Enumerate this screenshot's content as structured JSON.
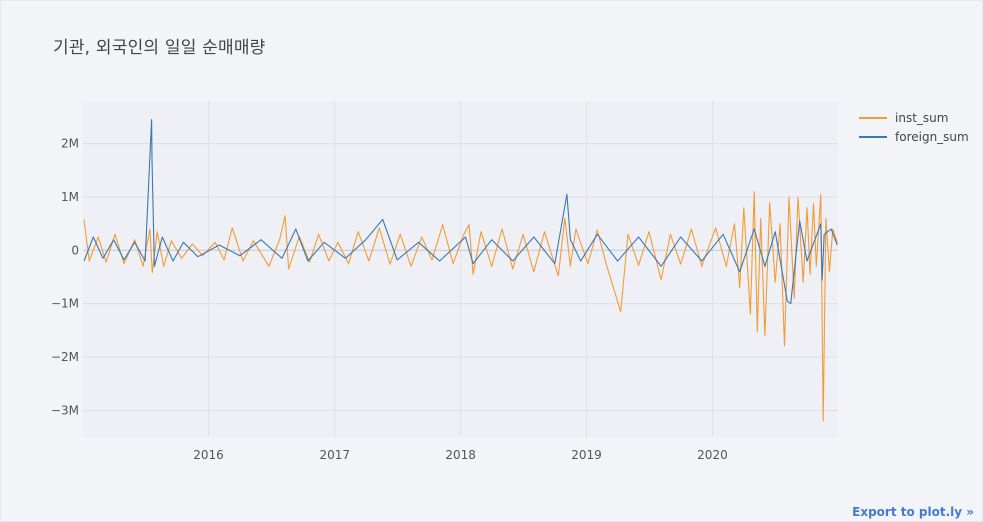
{
  "chart_data": {
    "type": "line",
    "title": "기관, 외국인의 일일 순매매량",
    "xlabel": "",
    "ylabel": "",
    "x_ticks": [
      "2016",
      "2017",
      "2018",
      "2019",
      "2020"
    ],
    "x_range": [
      "2015-01-02",
      "2020-12-30"
    ],
    "y_ticks": [
      {
        "value": 2000000,
        "label": "2M"
      },
      {
        "value": 1000000,
        "label": "1M"
      },
      {
        "value": 0,
        "label": "0"
      },
      {
        "value": -1000000,
        "label": "−1M"
      },
      {
        "value": -2000000,
        "label": "−2M"
      },
      {
        "value": -3000000,
        "label": "−3M"
      }
    ],
    "ylim": [
      -3500000,
      2800000
    ],
    "grid": true,
    "legend_position": "top-right",
    "series": [
      {
        "name": "inst_sum",
        "color": "#f39c36",
        "points": [
          [
            "2015-01-05",
            580000
          ],
          [
            "2015-01-20",
            -200000
          ],
          [
            "2015-02-15",
            250000
          ],
          [
            "2015-03-10",
            -220000
          ],
          [
            "2015-04-05",
            300000
          ],
          [
            "2015-05-01",
            -250000
          ],
          [
            "2015-06-01",
            200000
          ],
          [
            "2015-06-25",
            -300000
          ],
          [
            "2015-07-15",
            400000
          ],
          [
            "2015-07-22",
            -420000
          ],
          [
            "2015-08-05",
            350000
          ],
          [
            "2015-08-24",
            -300000
          ],
          [
            "2015-09-15",
            180000
          ],
          [
            "2015-10-15",
            -150000
          ],
          [
            "2015-11-15",
            120000
          ],
          [
            "2015-12-15",
            -100000
          ],
          [
            "2016-01-20",
            150000
          ],
          [
            "2016-02-15",
            -180000
          ],
          [
            "2016-03-10",
            420000
          ],
          [
            "2016-04-10",
            -200000
          ],
          [
            "2016-05-10",
            180000
          ],
          [
            "2016-06-24",
            -300000
          ],
          [
            "2016-07-25",
            200000
          ],
          [
            "2016-08-10",
            650000
          ],
          [
            "2016-08-20",
            -350000
          ],
          [
            "2016-09-20",
            260000
          ],
          [
            "2016-10-20",
            -220000
          ],
          [
            "2016-11-15",
            300000
          ],
          [
            "2016-12-15",
            -200000
          ],
          [
            "2017-01-10",
            150000
          ],
          [
            "2017-02-10",
            -250000
          ],
          [
            "2017-03-10",
            350000
          ],
          [
            "2017-04-10",
            -200000
          ],
          [
            "2017-05-10",
            420000
          ],
          [
            "2017-06-10",
            -260000
          ],
          [
            "2017-07-10",
            300000
          ],
          [
            "2017-08-10",
            -300000
          ],
          [
            "2017-09-10",
            250000
          ],
          [
            "2017-10-10",
            -180000
          ],
          [
            "2017-11-10",
            480000
          ],
          [
            "2017-12-10",
            -250000
          ],
          [
            "2018-01-10",
            300000
          ],
          [
            "2018-01-25",
            480000
          ],
          [
            "2018-02-06",
            -450000
          ],
          [
            "2018-03-01",
            350000
          ],
          [
            "2018-04-01",
            -300000
          ],
          [
            "2018-05-01",
            400000
          ],
          [
            "2018-06-01",
            -350000
          ],
          [
            "2018-07-01",
            300000
          ],
          [
            "2018-08-01",
            -400000
          ],
          [
            "2018-09-01",
            350000
          ],
          [
            "2018-10-11",
            -480000
          ],
          [
            "2018-10-30",
            600000
          ],
          [
            "2018-11-15",
            -300000
          ],
          [
            "2018-12-01",
            400000
          ],
          [
            "2019-01-05",
            -250000
          ],
          [
            "2019-02-01",
            380000
          ],
          [
            "2019-03-01",
            -300000
          ],
          [
            "2019-04-10",
            -1150000
          ],
          [
            "2019-05-01",
            300000
          ],
          [
            "2019-06-01",
            -280000
          ],
          [
            "2019-07-01",
            350000
          ],
          [
            "2019-08-05",
            -550000
          ],
          [
            "2019-09-01",
            300000
          ],
          [
            "2019-10-01",
            -260000
          ],
          [
            "2019-11-01",
            400000
          ],
          [
            "2019-12-01",
            -300000
          ],
          [
            "2020-01-10",
            420000
          ],
          [
            "2020-02-10",
            -300000
          ],
          [
            "2020-03-05",
            500000
          ],
          [
            "2020-03-20",
            -700000
          ],
          [
            "2020-04-01",
            800000
          ],
          [
            "2020-04-20",
            -1200000
          ],
          [
            "2020-05-01",
            1100000
          ],
          [
            "2020-05-10",
            -1530000
          ],
          [
            "2020-05-20",
            600000
          ],
          [
            "2020-06-01",
            -1600000
          ],
          [
            "2020-06-15",
            900000
          ],
          [
            "2020-07-01",
            -600000
          ],
          [
            "2020-07-15",
            500000
          ],
          [
            "2020-07-28",
            -1790000
          ],
          [
            "2020-08-10",
            1000000
          ],
          [
            "2020-08-25",
            -900000
          ],
          [
            "2020-09-05",
            1000000
          ],
          [
            "2020-09-20",
            -600000
          ],
          [
            "2020-10-01",
            800000
          ],
          [
            "2020-10-10",
            -450000
          ],
          [
            "2020-10-20",
            880000
          ],
          [
            "2020-10-28",
            -300000
          ],
          [
            "2020-11-10",
            1050000
          ],
          [
            "2020-11-17",
            -3200000
          ],
          [
            "2020-11-25",
            600000
          ],
          [
            "2020-12-05",
            -400000
          ],
          [
            "2020-12-15",
            400000
          ],
          [
            "2020-12-28",
            150000
          ]
        ]
      },
      {
        "name": "foreign_sum",
        "color": "#3b78b2",
        "points": [
          [
            "2015-01-05",
            -200000
          ],
          [
            "2015-02-01",
            250000
          ],
          [
            "2015-03-01",
            -150000
          ],
          [
            "2015-04-01",
            200000
          ],
          [
            "2015-05-01",
            -180000
          ],
          [
            "2015-06-01",
            150000
          ],
          [
            "2015-07-01",
            -200000
          ],
          [
            "2015-07-20",
            2450000
          ],
          [
            "2015-07-21",
            1700000
          ],
          [
            "2015-07-28",
            -300000
          ],
          [
            "2015-08-20",
            250000
          ],
          [
            "2015-09-20",
            -200000
          ],
          [
            "2015-10-20",
            150000
          ],
          [
            "2015-12-01",
            -120000
          ],
          [
            "2016-02-01",
            100000
          ],
          [
            "2016-04-01",
            -100000
          ],
          [
            "2016-06-01",
            200000
          ],
          [
            "2016-08-01",
            -150000
          ],
          [
            "2016-09-10",
            400000
          ],
          [
            "2016-10-15",
            -200000
          ],
          [
            "2016-12-01",
            150000
          ],
          [
            "2017-02-01",
            -150000
          ],
          [
            "2017-04-01",
            200000
          ],
          [
            "2017-05-20",
            580000
          ],
          [
            "2017-07-01",
            -180000
          ],
          [
            "2017-09-01",
            150000
          ],
          [
            "2017-11-01",
            -200000
          ],
          [
            "2018-01-15",
            250000
          ],
          [
            "2018-02-06",
            -250000
          ],
          [
            "2018-04-01",
            200000
          ],
          [
            "2018-06-01",
            -200000
          ],
          [
            "2018-08-01",
            250000
          ],
          [
            "2018-10-01",
            -250000
          ],
          [
            "2018-11-05",
            1050000
          ],
          [
            "2018-11-15",
            200000
          ],
          [
            "2018-12-15",
            -200000
          ],
          [
            "2019-02-01",
            300000
          ],
          [
            "2019-04-01",
            -200000
          ],
          [
            "2019-06-01",
            250000
          ],
          [
            "2019-08-05",
            -300000
          ],
          [
            "2019-10-01",
            250000
          ],
          [
            "2019-12-01",
            -200000
          ],
          [
            "2020-02-01",
            300000
          ],
          [
            "2020-03-20",
            -400000
          ],
          [
            "2020-05-01",
            400000
          ],
          [
            "2020-06-01",
            -300000
          ],
          [
            "2020-07-01",
            350000
          ],
          [
            "2020-08-05",
            -950000
          ],
          [
            "2020-08-15",
            -1000000
          ],
          [
            "2020-09-10",
            550000
          ],
          [
            "2020-10-01",
            -200000
          ],
          [
            "2020-11-10",
            500000
          ],
          [
            "2020-11-14",
            -560000
          ],
          [
            "2020-11-20",
            300000
          ],
          [
            "2020-12-10",
            400000
          ],
          [
            "2020-12-28",
            100000
          ]
        ]
      }
    ]
  },
  "export_link": "Export to plot.ly »"
}
